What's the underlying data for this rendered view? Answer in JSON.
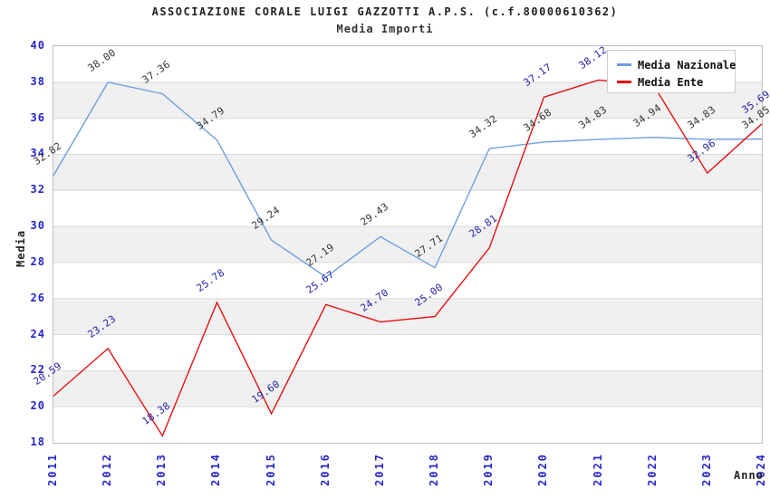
{
  "title": "ASSOCIAZIONE CORALE LUIGI GAZZOTTI A.P.S. (c.f.80000610362)",
  "subtitle": "Media Importi",
  "chart_data": {
    "type": "line",
    "x": [
      "2011",
      "2012",
      "2013",
      "2014",
      "2015",
      "2016",
      "2017",
      "2018",
      "2019",
      "2020",
      "2021",
      "2022",
      "2023",
      "2024"
    ],
    "xlabel": "Anno",
    "ylabel": "Media",
    "ylim": [
      18,
      40
    ],
    "ytick_step": 2,
    "grid": "horizontal gridlines every 2 units with alternating gray bands",
    "legend_position": "top-right",
    "series": [
      {
        "name": "Media Nazionale",
        "color": "#6d9fe0",
        "label_color": "#333333",
        "values": [
          32.82,
          38.0,
          37.36,
          34.79,
          29.24,
          27.19,
          29.43,
          27.71,
          34.32,
          34.68,
          34.83,
          34.94,
          34.83,
          34.85
        ],
        "labels": [
          "32.82",
          "38.00",
          "37.36",
          "34.79",
          "29.24",
          "27.19",
          "29.43",
          "27.71",
          "34.32",
          "34.68",
          "34.83",
          "34.94",
          "34.83",
          "34.85"
        ]
      },
      {
        "name": "Media Ente",
        "color": "#e61010",
        "label_color": "#2222aa",
        "values": [
          20.59,
          23.23,
          18.38,
          25.78,
          19.6,
          25.67,
          24.7,
          25.0,
          28.81,
          37.17,
          38.12,
          37.9,
          32.96,
          35.69
        ],
        "labels": [
          "20.59",
          "23.23",
          "18.38",
          "25.78",
          "19.60",
          "25.67",
          "24.70",
          "25.00",
          "28.81",
          "37.17",
          "38.12",
          null,
          "32.96",
          "35.69"
        ],
        "note": "2022 value estimated from line slope; its label is hidden behind the legend box"
      }
    ]
  },
  "colors": {
    "axis_tick_labels": "#2525cd",
    "band_gray": "#f0f0f0",
    "gridline": "#dadada",
    "plot_border": "#c0c0c0",
    "legend_border": "#cccccc"
  }
}
